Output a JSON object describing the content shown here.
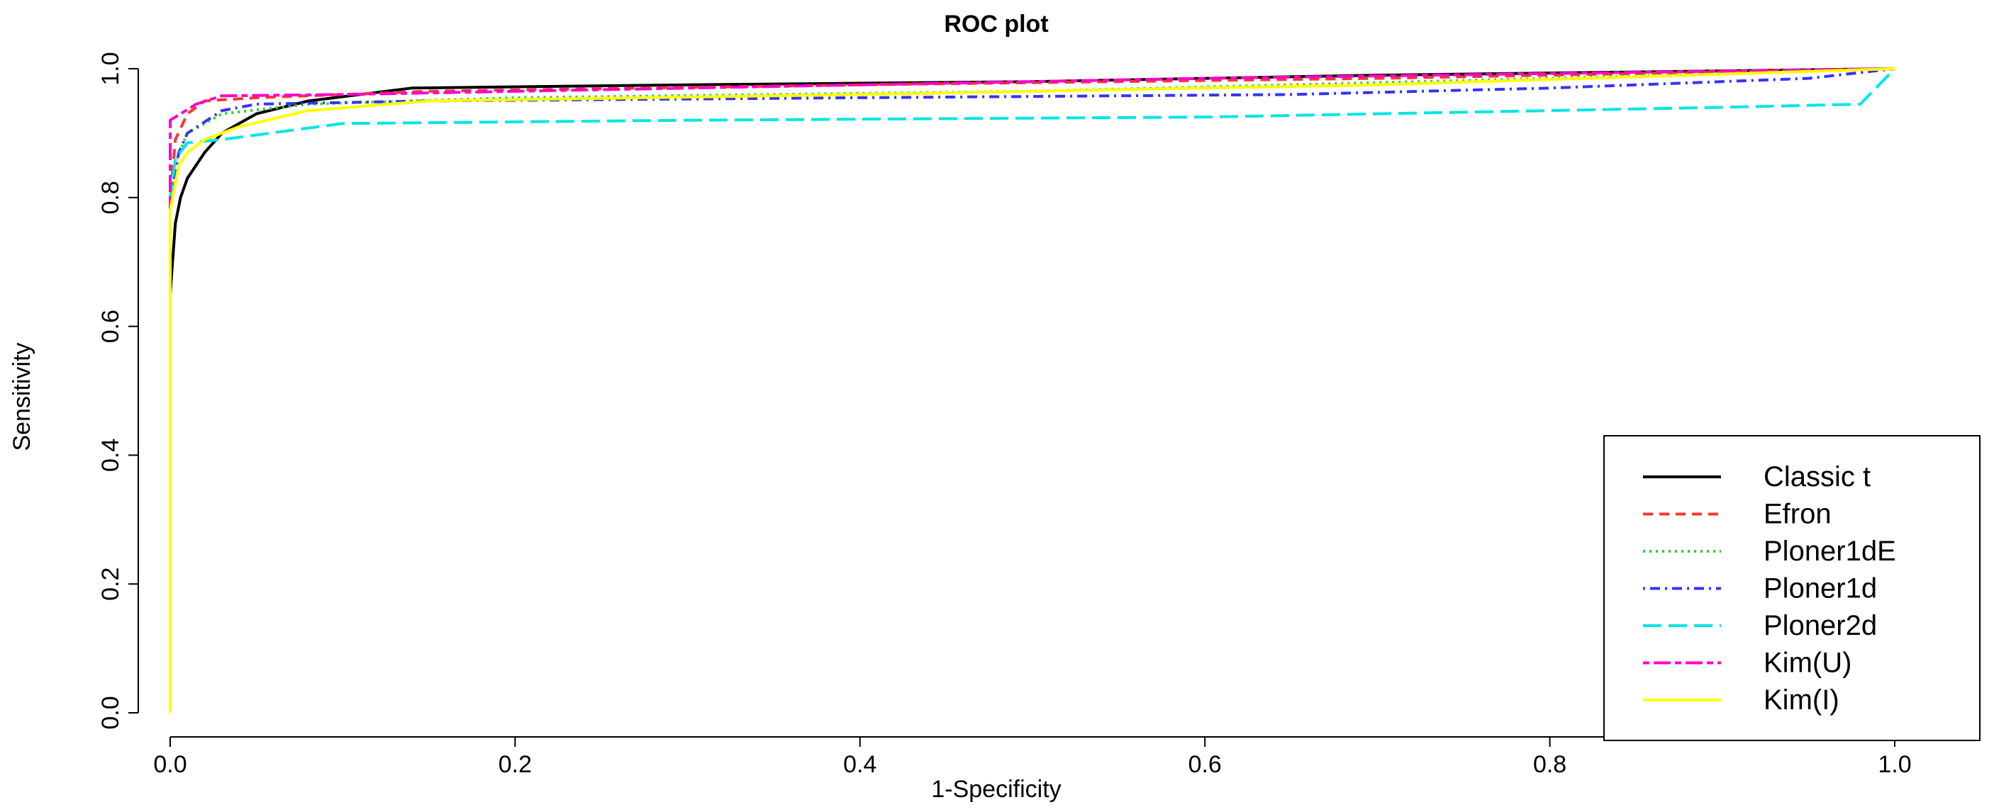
{
  "chart_data": {
    "type": "line",
    "title": "ROC plot",
    "xlabel": "1-Specificity",
    "ylabel": "Sensitivity",
    "xlim": [
      0,
      1
    ],
    "ylim": [
      0,
      1
    ],
    "x_ticks": [
      0.0,
      0.2,
      0.4,
      0.6,
      0.8,
      1.0
    ],
    "x_tick_labels": [
      "0.0",
      "0.2",
      "0.4",
      "0.6",
      "0.8",
      "1.0"
    ],
    "y_ticks": [
      0.0,
      0.2,
      0.4,
      0.6,
      0.8,
      1.0
    ],
    "y_tick_labels": [
      "0.0",
      "0.2",
      "0.4",
      "0.6",
      "0.8",
      "1.0"
    ],
    "grid": false,
    "legend_position": "bottom-right",
    "series": [
      {
        "name": "Classic t",
        "color": "#000000",
        "dash": "solid",
        "points": [
          [
            0,
            0
          ],
          [
            0,
            0.65
          ],
          [
            0.003,
            0.76
          ],
          [
            0.006,
            0.8
          ],
          [
            0.01,
            0.83
          ],
          [
            0.02,
            0.87
          ],
          [
            0.03,
            0.9
          ],
          [
            0.05,
            0.93
          ],
          [
            0.08,
            0.95
          ],
          [
            0.14,
            0.97
          ],
          [
            0.3,
            0.975
          ],
          [
            0.5,
            0.98
          ],
          [
            0.7,
            0.99
          ],
          [
            1,
            1
          ]
        ]
      },
      {
        "name": "Efron",
        "color": "#ff3333",
        "dash": "dashed",
        "points": [
          [
            0,
            0
          ],
          [
            0,
            0.8
          ],
          [
            0.003,
            0.89
          ],
          [
            0.01,
            0.93
          ],
          [
            0.02,
            0.95
          ],
          [
            0.05,
            0.955
          ],
          [
            0.15,
            0.965
          ],
          [
            0.4,
            0.975
          ],
          [
            0.7,
            0.985
          ],
          [
            1,
            1
          ]
        ]
      },
      {
        "name": "Ploner1dE",
        "color": "#33cc33",
        "dash": "dotted",
        "points": [
          [
            0,
            0
          ],
          [
            0,
            0.8
          ],
          [
            0.004,
            0.86
          ],
          [
            0.01,
            0.9
          ],
          [
            0.03,
            0.93
          ],
          [
            0.08,
            0.945
          ],
          [
            0.2,
            0.955
          ],
          [
            0.5,
            0.965
          ],
          [
            0.8,
            0.985
          ],
          [
            1,
            1
          ]
        ]
      },
      {
        "name": "Ploner1d",
        "color": "#3333ff",
        "dash": "dotdash",
        "points": [
          [
            0,
            0
          ],
          [
            0,
            0.8
          ],
          [
            0.005,
            0.87
          ],
          [
            0.01,
            0.9
          ],
          [
            0.03,
            0.935
          ],
          [
            0.05,
            0.945
          ],
          [
            0.15,
            0.95
          ],
          [
            0.4,
            0.955
          ],
          [
            0.65,
            0.96
          ],
          [
            0.8,
            0.97
          ],
          [
            0.95,
            0.985
          ],
          [
            1,
            1
          ]
        ]
      },
      {
        "name": "Ploner2d",
        "color": "#00e5e5",
        "dash": "longdash",
        "points": [
          [
            0,
            0
          ],
          [
            0,
            0.8
          ],
          [
            0.003,
            0.86
          ],
          [
            0.01,
            0.885
          ],
          [
            0.03,
            0.89
          ],
          [
            0.1,
            0.915
          ],
          [
            0.3,
            0.92
          ],
          [
            0.6,
            0.925
          ],
          [
            0.9,
            0.94
          ],
          [
            0.98,
            0.945
          ],
          [
            1,
            1
          ]
        ]
      },
      {
        "name": "Kim(U)",
        "color": "#ff00cc",
        "dash": "twodash",
        "points": [
          [
            0,
            0
          ],
          [
            0,
            0.92
          ],
          [
            0.006,
            0.93
          ],
          [
            0.015,
            0.945
          ],
          [
            0.03,
            0.958
          ],
          [
            0.1,
            0.96
          ],
          [
            0.3,
            0.97
          ],
          [
            0.6,
            0.985
          ],
          [
            1,
            1
          ]
        ]
      },
      {
        "name": "Kim(I)",
        "color": "#ffff00",
        "dash": "solid",
        "points": [
          [
            0,
            0
          ],
          [
            0,
            0.78
          ],
          [
            0.005,
            0.85
          ],
          [
            0.01,
            0.87
          ],
          [
            0.02,
            0.89
          ],
          [
            0.04,
            0.91
          ],
          [
            0.08,
            0.935
          ],
          [
            0.15,
            0.95
          ],
          [
            0.4,
            0.96
          ],
          [
            0.7,
            0.975
          ],
          [
            1,
            1
          ]
        ]
      }
    ]
  }
}
